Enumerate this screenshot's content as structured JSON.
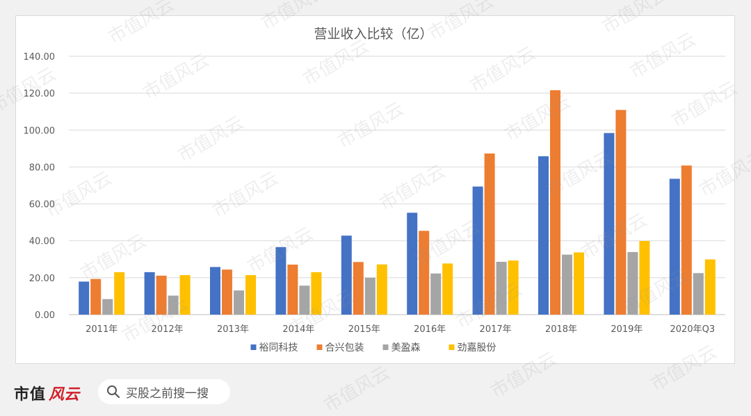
{
  "chart_data": {
    "type": "bar",
    "title": "营业收入比较（亿）",
    "categories": [
      "2011年",
      "2012年",
      "2013年",
      "2014年",
      "2015年",
      "2016年",
      "2017年",
      "2018年",
      "2019年",
      "2020年Q3"
    ],
    "series": [
      {
        "name": "裕同科技",
        "color": "#4472c4",
        "values": [
          17.9,
          23.0,
          25.8,
          36.6,
          42.8,
          55.2,
          69.4,
          85.8,
          98.4,
          73.6
        ]
      },
      {
        "name": "合兴包装",
        "color": "#ed7d31",
        "values": [
          19.3,
          21.1,
          24.4,
          27.1,
          28.5,
          45.4,
          87.3,
          121.6,
          110.9,
          80.8
        ]
      },
      {
        "name": "美盈森",
        "color": "#a5a5a5",
        "values": [
          8.4,
          10.3,
          13.1,
          15.7,
          20.0,
          22.3,
          28.6,
          32.5,
          33.9,
          22.5
        ]
      },
      {
        "name": "劲嘉股份",
        "color": "#ffc000",
        "values": [
          23.0,
          21.4,
          21.4,
          23.0,
          27.2,
          27.7,
          29.3,
          33.7,
          39.9,
          29.9
        ]
      }
    ],
    "ylim": [
      0,
      140
    ],
    "yticks": [
      "0.00",
      "20.00",
      "40.00",
      "60.00",
      "80.00",
      "100.00",
      "120.00",
      "140.00"
    ],
    "grid": true,
    "legend": "bottom"
  },
  "footer": {
    "brand_text": "市值",
    "brand_script": "风云",
    "search_placeholder": "买股之前搜一搜",
    "search_icon": "search-icon"
  },
  "watermark": "市值风云"
}
